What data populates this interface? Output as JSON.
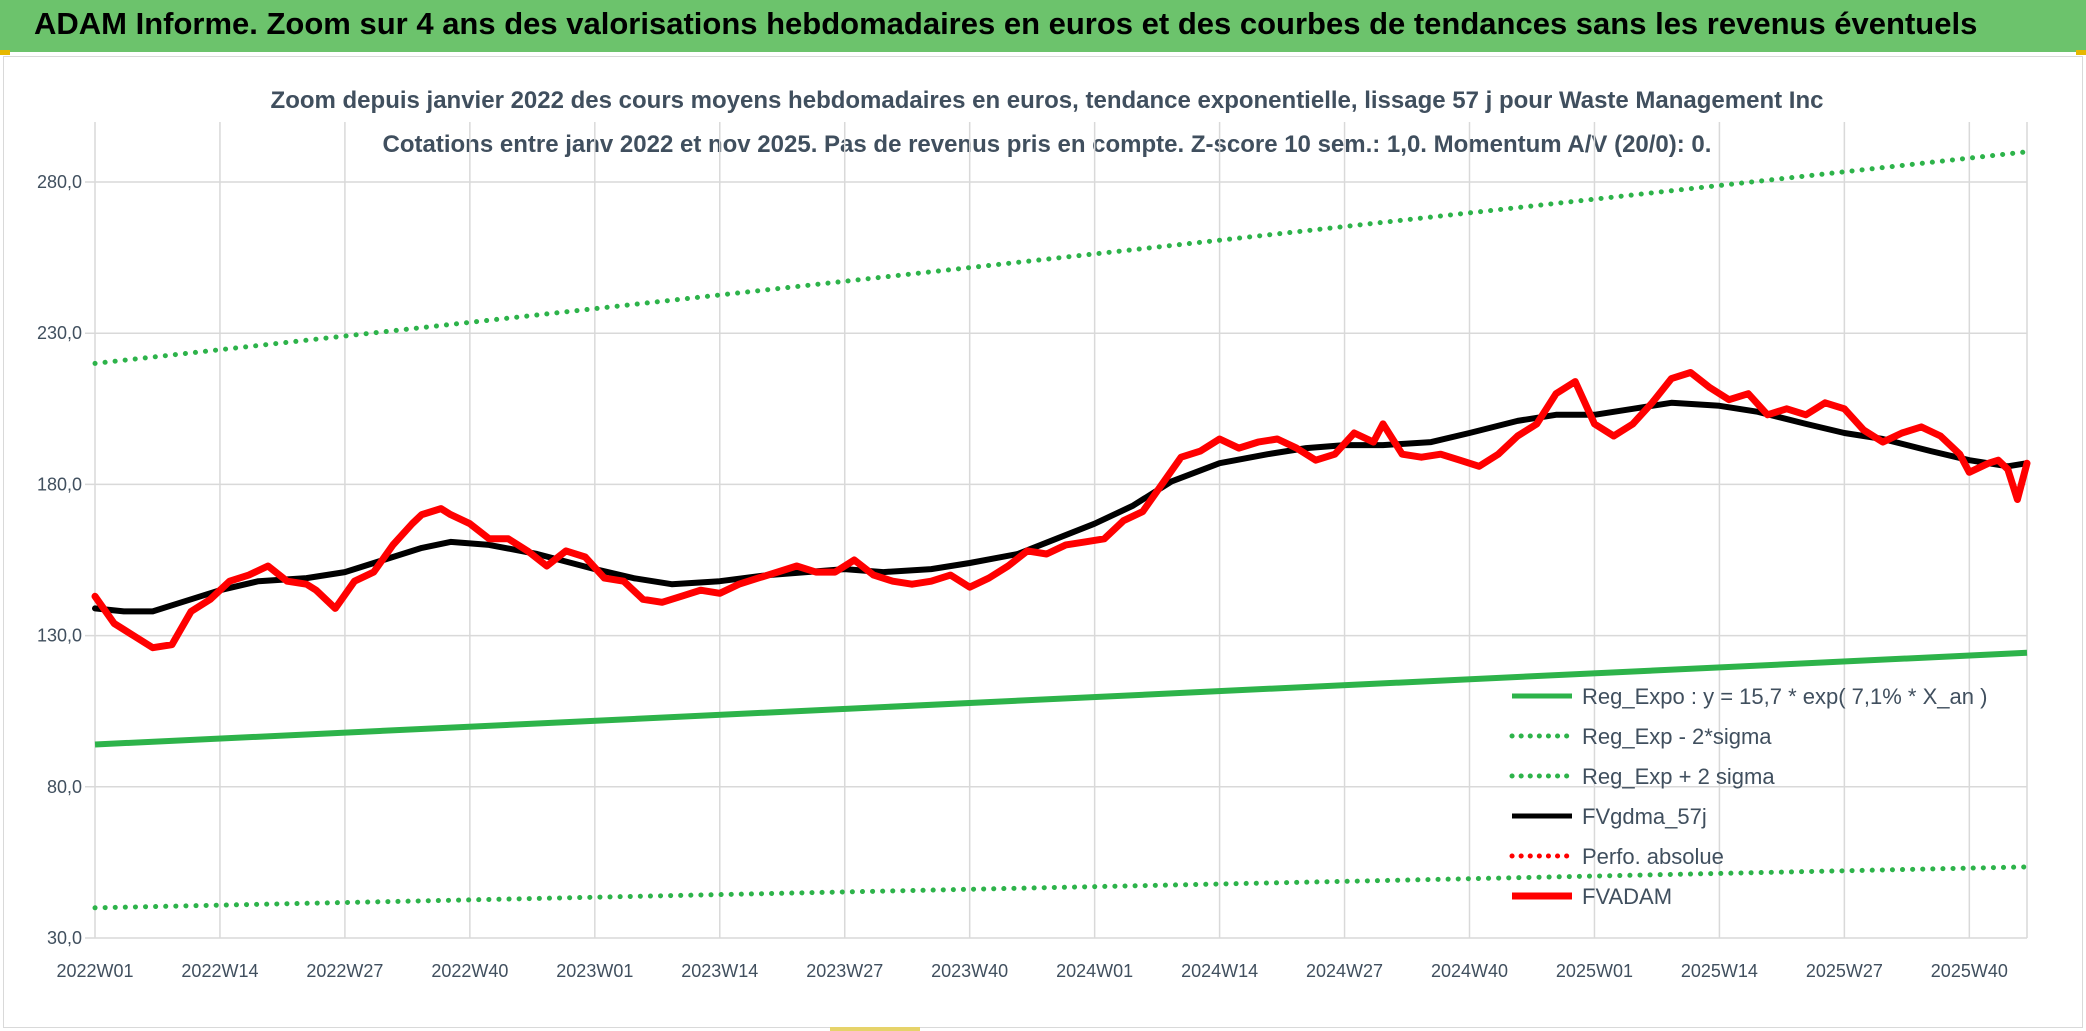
{
  "header": {
    "title": "ADAM Informe. Zoom sur 4 ans des valorisations hebdomadaires en euros et des courbes de tendances sans les revenus éventuels"
  },
  "colors": {
    "banner": "#6cc36c",
    "trend_green": "#2db34a",
    "price_red": "#ff0000",
    "smooth_black": "#000000",
    "text": "#404f5e",
    "grid": "#d9d9d9"
  },
  "chart_data": {
    "type": "line",
    "title": "Zoom depuis janvier 2022 des cours moyens hebdomadaires en euros, tendance exponentielle, lissage 57 j pour Waste Management Inc",
    "subtitle": "Cotations entre janv 2022 et nov 2025. Pas de revenus pris en compte. Z-score 10 sem.: 1,0. Momentum A/V (20/0): 0.",
    "xlabel": "",
    "ylabel": "",
    "ylim": [
      30,
      280
    ],
    "y_ticks": [
      "30,0",
      "80,0",
      "130,0",
      "180,0",
      "230,0",
      "280,0"
    ],
    "x_ticks": [
      "2022W01",
      "2022W14",
      "2022W27",
      "2022W40",
      "2023W01",
      "2023W14",
      "2023W27",
      "2023W40",
      "2024W01",
      "2024W14",
      "2024W27",
      "2024W40",
      "2025W01",
      "2025W14",
      "2025W27",
      "2025W40"
    ],
    "grid": true,
    "legend_position": "bottom-right",
    "week_range": [
      "2022W01",
      "2025W46"
    ],
    "series": [
      {
        "name": "Reg_Expo : y = 15,7 * exp( 7,1% *  X_an )",
        "style": "solid",
        "color": "#2db34a",
        "points": [
          [
            "2022W01",
            94.0
          ],
          [
            "2025W46",
            124.3
          ]
        ]
      },
      {
        "name": "Reg_Exp - 2*sigma",
        "style": "dotted",
        "color": "#2db34a",
        "points": [
          [
            "2022W01",
            40.0
          ],
          [
            "2025W46",
            53.5
          ]
        ]
      },
      {
        "name": "Reg_Exp + 2 sigma",
        "style": "dotted",
        "color": "#2db34a",
        "points": [
          [
            "2022W01",
            220.0
          ],
          [
            "2025W46",
            290.0
          ]
        ]
      },
      {
        "name": "FVgdma_57j",
        "style": "solid",
        "color": "#000000",
        "points": [
          [
            "2022W01",
            139
          ],
          [
            "2022W04",
            138
          ],
          [
            "2022W07",
            138
          ],
          [
            "2022W10",
            141
          ],
          [
            "2022W14",
            145
          ],
          [
            "2022W18",
            148
          ],
          [
            "2022W23",
            149
          ],
          [
            "2022W27",
            151
          ],
          [
            "2022W31",
            155
          ],
          [
            "2022W35",
            159
          ],
          [
            "2022W38",
            161
          ],
          [
            "2022W42",
            160
          ],
          [
            "2022W47",
            157
          ],
          [
            "2023W01",
            152
          ],
          [
            "2023W05",
            149
          ],
          [
            "2023W09",
            147
          ],
          [
            "2023W14",
            148
          ],
          [
            "2023W19",
            150
          ],
          [
            "2023W23",
            151
          ],
          [
            "2023W27",
            152
          ],
          [
            "2023W31",
            151
          ],
          [
            "2023W36",
            152
          ],
          [
            "2023W40",
            154
          ],
          [
            "2023W45",
            157
          ],
          [
            "2023W49",
            162
          ],
          [
            "2024W01",
            167
          ],
          [
            "2024W05",
            173
          ],
          [
            "2024W09",
            181
          ],
          [
            "2024W14",
            187
          ],
          [
            "2024W19",
            190
          ],
          [
            "2024W23",
            192
          ],
          [
            "2024W27",
            193
          ],
          [
            "2024W31",
            193
          ],
          [
            "2024W36",
            194
          ],
          [
            "2024W40",
            197
          ],
          [
            "2024W45",
            201
          ],
          [
            "2024W49",
            203
          ],
          [
            "2025W01",
            203
          ],
          [
            "2025W05",
            205
          ],
          [
            "2025W09",
            207
          ],
          [
            "2025W14",
            206
          ],
          [
            "2025W18",
            204
          ],
          [
            "2025W23",
            200
          ],
          [
            "2025W27",
            197
          ],
          [
            "2025W31",
            195
          ],
          [
            "2025W36",
            191
          ],
          [
            "2025W40",
            188
          ],
          [
            "2025W44",
            186
          ],
          [
            "2025W46",
            187
          ]
        ]
      },
      {
        "name": "Perfo. absolue",
        "style": "dotted",
        "color": "#ff0000",
        "points": []
      },
      {
        "name": "FVADAM",
        "style": "solid-thick",
        "color": "#ff0000",
        "points": [
          [
            "2022W01",
            143
          ],
          [
            "2022W03",
            134
          ],
          [
            "2022W05",
            130
          ],
          [
            "2022W07",
            126
          ],
          [
            "2022W09",
            127
          ],
          [
            "2022W11",
            138
          ],
          [
            "2022W13",
            142
          ],
          [
            "2022W15",
            148
          ],
          [
            "2022W17",
            150
          ],
          [
            "2022W19",
            153
          ],
          [
            "2022W21",
            148
          ],
          [
            "2022W23",
            147
          ],
          [
            "2022W24",
            145
          ],
          [
            "2022W26",
            139
          ],
          [
            "2022W28",
            148
          ],
          [
            "2022W30",
            151
          ],
          [
            "2022W32",
            160
          ],
          [
            "2022W34",
            167
          ],
          [
            "2022W35",
            170
          ],
          [
            "2022W37",
            172
          ],
          [
            "2022W38",
            170
          ],
          [
            "2022W40",
            167
          ],
          [
            "2022W42",
            162
          ],
          [
            "2022W44",
            162
          ],
          [
            "2022W46",
            158
          ],
          [
            "2022W48",
            153
          ],
          [
            "2022W50",
            158
          ],
          [
            "2022W52",
            156
          ],
          [
            "2023W02",
            149
          ],
          [
            "2023W04",
            148
          ],
          [
            "2023W06",
            142
          ],
          [
            "2023W08",
            141
          ],
          [
            "2023W10",
            143
          ],
          [
            "2023W12",
            145
          ],
          [
            "2023W14",
            144
          ],
          [
            "2023W16",
            147
          ],
          [
            "2023W18",
            149
          ],
          [
            "2023W20",
            151
          ],
          [
            "2023W22",
            153
          ],
          [
            "2023W24",
            151
          ],
          [
            "2023W26",
            151
          ],
          [
            "2023W28",
            155
          ],
          [
            "2023W30",
            150
          ],
          [
            "2023W32",
            148
          ],
          [
            "2023W34",
            147
          ],
          [
            "2023W36",
            148
          ],
          [
            "2023W38",
            150
          ],
          [
            "2023W40",
            146
          ],
          [
            "2023W42",
            149
          ],
          [
            "2023W44",
            153
          ],
          [
            "2023W46",
            158
          ],
          [
            "2023W48",
            157
          ],
          [
            "2023W50",
            160
          ],
          [
            "2023W52",
            161
          ],
          [
            "2024W02",
            162
          ],
          [
            "2024W04",
            168
          ],
          [
            "2024W06",
            171
          ],
          [
            "2024W08",
            180
          ],
          [
            "2024W10",
            189
          ],
          [
            "2024W12",
            191
          ],
          [
            "2024W14",
            195
          ],
          [
            "2024W16",
            192
          ],
          [
            "2024W18",
            194
          ],
          [
            "2024W20",
            195
          ],
          [
            "2024W22",
            192
          ],
          [
            "2024W24",
            188
          ],
          [
            "2024W26",
            190
          ],
          [
            "2024W28",
            197
          ],
          [
            "2024W30",
            194
          ],
          [
            "2024W31",
            200
          ],
          [
            "2024W33",
            190
          ],
          [
            "2024W35",
            189
          ],
          [
            "2024W37",
            190
          ],
          [
            "2024W39",
            188
          ],
          [
            "2024W41",
            186
          ],
          [
            "2024W43",
            190
          ],
          [
            "2024W45",
            196
          ],
          [
            "2024W47",
            200
          ],
          [
            "2024W49",
            210
          ],
          [
            "2024W51",
            214
          ],
          [
            "2025W01",
            200
          ],
          [
            "2025W03",
            196
          ],
          [
            "2025W05",
            200
          ],
          [
            "2025W07",
            207
          ],
          [
            "2025W09",
            215
          ],
          [
            "2025W11",
            217
          ],
          [
            "2025W13",
            212
          ],
          [
            "2025W15",
            208
          ],
          [
            "2025W17",
            210
          ],
          [
            "2025W19",
            203
          ],
          [
            "2025W21",
            205
          ],
          [
            "2025W23",
            203
          ],
          [
            "2025W25",
            207
          ],
          [
            "2025W27",
            205
          ],
          [
            "2025W29",
            198
          ],
          [
            "2025W31",
            194
          ],
          [
            "2025W33",
            197
          ],
          [
            "2025W35",
            199
          ],
          [
            "2025W37",
            196
          ],
          [
            "2025W39",
            190
          ],
          [
            "2025W40",
            184
          ],
          [
            "2025W42",
            187
          ],
          [
            "2025W43",
            188
          ],
          [
            "2025W44",
            185
          ],
          [
            "2025W45",
            175
          ],
          [
            "2025W46",
            187
          ]
        ]
      }
    ]
  }
}
